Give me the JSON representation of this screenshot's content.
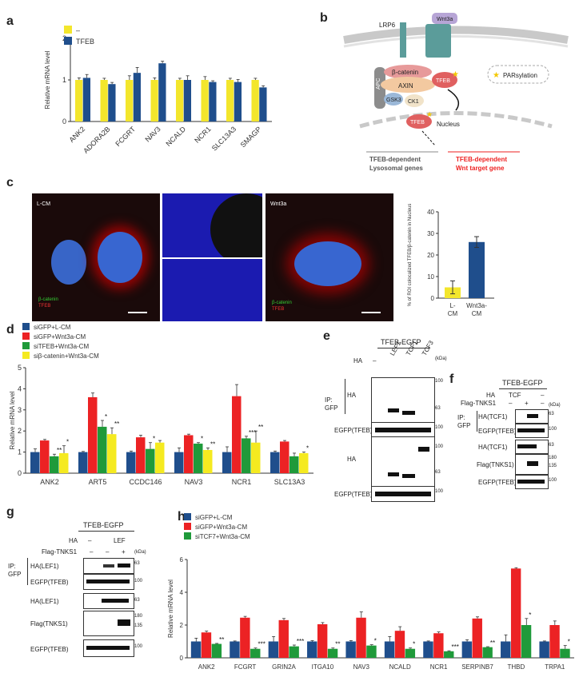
{
  "panels": {
    "a": "a",
    "b": "b",
    "c": "c",
    "d": "d",
    "e": "e",
    "f": "f",
    "g": "g",
    "h": "h"
  },
  "colors": {
    "yellow": "#f3e62c",
    "blue": "#1f4e8c",
    "red": "#ec2224",
    "green": "#1f9a3a",
    "yellow2": "#f5ea20"
  },
  "panel_b": {
    "lrp6": "LRP6",
    "wnt3a": "Wnt3a",
    "apc": "APC",
    "bcat": "β-catenin",
    "axin": "AXIN",
    "tfeb": "TFEB",
    "gsk3": "GSK3",
    "ck1": "CK1",
    "pars": "PARsylation",
    "nucleus": "Nucleus",
    "left_caption_1": "TFEB-dependent",
    "left_caption_2": "Lysosomal genes",
    "right_caption_1": "TFEB-dependent",
    "right_caption_2": "Wnt target gene"
  },
  "panel_c": {
    "lcm": "L-CM",
    "wnt3a": "Wnt3a",
    "bcat": "β-catenin",
    "tfeb": "TFEB",
    "chart_ylabel": "% of ROI colocalized TFEB/β-catenin in Nucleus"
  },
  "panel_e": {
    "title": "TFEB-EGFP",
    "ha": "HA",
    "lanes": [
      "–",
      "LEF1",
      "TCF1",
      "TCF3"
    ],
    "kda": "(kDa)",
    "ip": "IP:",
    "gfp": "GFP",
    "rows": [
      "HA",
      "EGFP(TFEB)",
      "HA",
      "EGFP(TFEB)"
    ],
    "markers": [
      "100",
      "63",
      "100",
      "100",
      "63",
      "100"
    ]
  },
  "panel_f": {
    "title": "TFEB-EGFP",
    "ha": "HA",
    "ha_vals": [
      "TCF",
      "–"
    ],
    "flag": "Flag-TNKS1",
    "flag_vals": [
      "–",
      "+",
      "–"
    ],
    "kda": "(kDa)",
    "ip": "IP:",
    "gfp": "GFP",
    "rows": [
      "HA(TCF1)",
      "EGFP(TFEB)",
      "HA(TCF1)",
      "Flag(TNKS1)",
      "EGFP(TFEB)"
    ],
    "markers": [
      "63",
      "100",
      "63",
      "180",
      "135",
      "100"
    ]
  },
  "panel_g": {
    "title": "TFEB-EGFP",
    "ha": "HA",
    "ha_vals": [
      "–",
      "LEF"
    ],
    "flag": "Flag-TNKS1",
    "flag_vals": [
      "–",
      "–",
      "+"
    ],
    "kda": "(kDa)",
    "ip": "IP:",
    "gfp": "GFP",
    "rows": [
      "HA(LEF1)",
      "EGFP(TFEB)",
      "HA(LEF1)",
      "Flag(TNKS1)",
      "EGFP(TFEB)"
    ],
    "markers": [
      "63",
      "100",
      "63",
      "180",
      "135",
      "100"
    ]
  },
  "chart_data": [
    {
      "id": "a",
      "type": "bar",
      "ylabel": "Relative mRNA level",
      "ylim": [
        0,
        2
      ],
      "yticks": [
        0,
        1,
        2
      ],
      "categories": [
        "ANK2",
        "ADORA2B",
        "FCGRT",
        "NAV3",
        "NCALD",
        "NCR1",
        "SLC13A3",
        "SMAGP"
      ],
      "series": [
        {
          "name": "–",
          "color": "#f3e62c",
          "values": [
            1.0,
            1.0,
            1.0,
            1.0,
            1.0,
            1.0,
            1.0,
            1.0
          ],
          "err": [
            0.05,
            0.04,
            0.1,
            0.05,
            0.04,
            0.08,
            0.04,
            0.04
          ]
        },
        {
          "name": "TFEB",
          "color": "#1f4e8c",
          "values": [
            1.05,
            0.9,
            1.17,
            1.4,
            1.0,
            0.95,
            0.95,
            0.82
          ],
          "err": [
            0.08,
            0.04,
            0.13,
            0.05,
            0.1,
            0.03,
            0.06,
            0.04
          ]
        }
      ],
      "legend": "top-left"
    },
    {
      "id": "c",
      "type": "bar",
      "ylabel": "% of ROI colocalized TFEB/β-catenin in Nucleus",
      "ylim": [
        0,
        40
      ],
      "yticks": [
        0,
        10,
        20,
        30,
        40
      ],
      "categories": [
        "L-CM",
        "Wnt3a-CM"
      ],
      "values": [
        5,
        26
      ],
      "err": [
        3,
        2.5
      ],
      "colors": [
        "#f3e62c",
        "#1f4e8c"
      ]
    },
    {
      "id": "d",
      "type": "bar",
      "ylabel": "Relative mRNA level",
      "ylim": [
        0,
        5
      ],
      "yticks": [
        0,
        1,
        2,
        3,
        4,
        5
      ],
      "categories": [
        "ANK2",
        "ART5",
        "CCDC146",
        "NAV3",
        "NCR1",
        "SLC13A3"
      ],
      "series": [
        {
          "name": "siGFP+L-CM",
          "color": "#1f4e8c",
          "values": [
            1.0,
            1.0,
            1.0,
            1.0,
            1.0,
            1.0
          ],
          "err": [
            0.15,
            0.03,
            0.05,
            0.2,
            0.25,
            0.05
          ]
        },
        {
          "name": "siGFP+Wnt3a-CM",
          "color": "#ec2224",
          "values": [
            1.55,
            3.6,
            1.7,
            1.8,
            3.65,
            1.5
          ],
          "err": [
            0.05,
            0.2,
            0.1,
            0.05,
            0.55,
            0.05
          ]
        },
        {
          "name": "siTFEB+Wnt3a-CM",
          "color": "#1f9a3a",
          "values": [
            0.8,
            2.2,
            1.15,
            1.4,
            1.65,
            0.8
          ],
          "err": [
            0.1,
            0.3,
            0.3,
            0.05,
            0.1,
            0.15
          ]
        },
        {
          "name": "siβ-catenin+Wnt3a-CM",
          "color": "#f5ea20",
          "values": [
            0.95,
            1.85,
            1.45,
            1.1,
            1.45,
            0.95
          ],
          "err": [
            0.35,
            0.3,
            0.1,
            0.1,
            0.55,
            0.05
          ]
        }
      ],
      "sig": [
        [
          "**",
          "*"
        ],
        [
          "*",
          "**"
        ],
        [
          "*",
          ""
        ],
        [
          "*",
          "**"
        ],
        [
          "***",
          "**"
        ],
        [
          "",
          "*"
        ]
      ],
      "legend": "top-left"
    },
    {
      "id": "h",
      "type": "bar",
      "ylabel": "Relative mRNA level",
      "ylim": [
        0,
        6
      ],
      "yticks": [
        0,
        2,
        4,
        6
      ],
      "categories": [
        "ANK2",
        "FCGRT",
        "GRIN2A",
        "ITGA10",
        "NAV3",
        "NCALD",
        "NCR1",
        "SERPINB7",
        "THBD",
        "TRPA1"
      ],
      "series": [
        {
          "name": "siGFP+L-CM",
          "color": "#1f4e8c",
          "values": [
            1.0,
            1.0,
            1.0,
            1.0,
            1.0,
            1.0,
            1.0,
            1.0,
            1.0,
            1.0
          ],
          "err": [
            0.2,
            0.03,
            0.3,
            0.05,
            0.05,
            0.3,
            0.03,
            0.1,
            0.4,
            0.03
          ]
        },
        {
          "name": "siGFP+Wnt3a-CM",
          "color": "#ec2224",
          "values": [
            1.55,
            2.45,
            2.3,
            2.05,
            2.45,
            1.65,
            1.5,
            2.4,
            5.45,
            2.0
          ],
          "err": [
            0.08,
            0.08,
            0.1,
            0.1,
            0.35,
            0.25,
            0.08,
            0.1,
            0.05,
            0.25
          ]
        },
        {
          "name": "siTCF7+Wnt3a-CM",
          "color": "#1f9a3a",
          "values": [
            0.85,
            0.55,
            0.7,
            0.55,
            0.75,
            0.55,
            0.4,
            0.65,
            2.0,
            0.55
          ],
          "err": [
            0.03,
            0.05,
            0.08,
            0.05,
            0.05,
            0.05,
            0.03,
            0.03,
            0.4,
            0.2
          ]
        }
      ],
      "sig": [
        "**",
        "***",
        "***",
        "**",
        "*",
        "*",
        "***",
        "**",
        "*",
        "*"
      ],
      "legend": "top-left"
    }
  ]
}
